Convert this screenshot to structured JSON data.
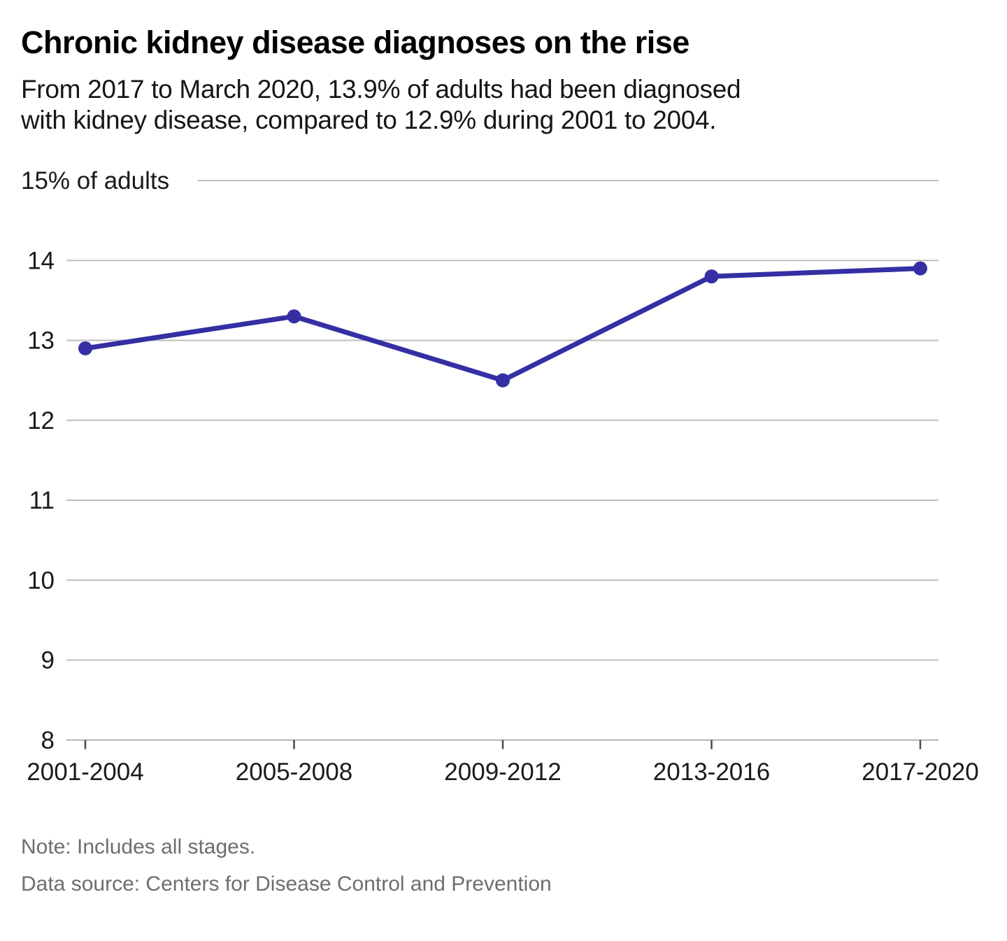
{
  "header": {
    "title": "Chronic kidney disease diagnoses on the rise",
    "subtitle_lines": [
      "From 2017 to March 2020, 13.9% of adults had been diagnosed",
      "with kidney disease, compared to 12.9% during 2001 to 2004."
    ]
  },
  "chart_data": {
    "type": "line",
    "title": "Chronic kidney disease diagnoses on the rise",
    "categories": [
      "2001-2004",
      "2005-2008",
      "2009-2012",
      "2013-2016",
      "2017-2020"
    ],
    "values": [
      12.9,
      13.3,
      12.5,
      13.8,
      13.9
    ],
    "xlabel": "",
    "ylabel": "% of adults",
    "y_top_label": "15% of adults",
    "y_ticks": [
      15,
      14,
      13,
      12,
      11,
      10,
      9,
      8
    ],
    "ylim": [
      8,
      15
    ],
    "grid": "horizontal",
    "legend": "none",
    "line_color": "#352fa4"
  },
  "footer": {
    "note": "Note: Includes all stages.",
    "source": "Data source: Centers for Disease Control and Prevention"
  },
  "colors": {
    "line": "#352fa4",
    "marker": "#352fa4",
    "grid": "#bdbdbd",
    "axis": "#b3b3b3",
    "tick": "#4a4a4a",
    "axis_text": "#1a1a1a",
    "muted_text": "#6e6e6e"
  }
}
